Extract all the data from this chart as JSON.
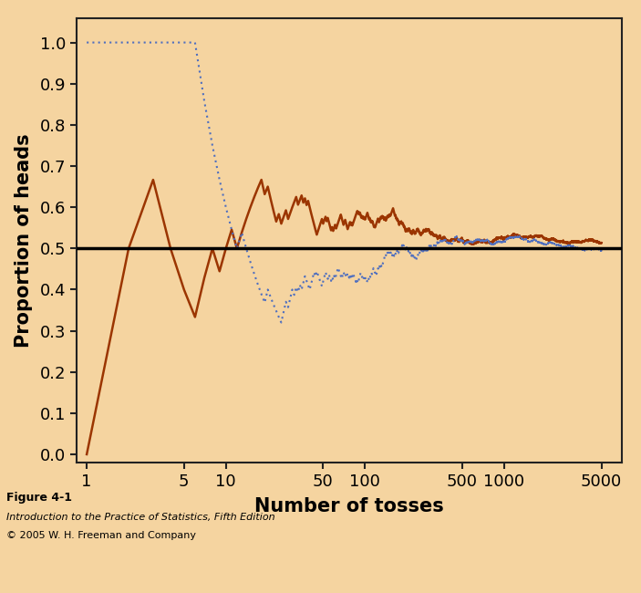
{
  "bg_color": "#F5D4A0",
  "xlabel": "Number of tosses",
  "ylabel": "Proportion of heads",
  "xlabel_fontsize": 15,
  "ylabel_fontsize": 15,
  "xlabel_fontweight": "bold",
  "ylabel_fontweight": "bold",
  "yticks": [
    0.0,
    0.1,
    0.2,
    0.3,
    0.4,
    0.5,
    0.6,
    0.7,
    0.8,
    0.9,
    1.0
  ],
  "xtick_positions": [
    1,
    5,
    10,
    50,
    100,
    500,
    1000,
    5000
  ],
  "xtick_labels": [
    "1",
    "5",
    "10",
    "50",
    "100",
    "500",
    "1000",
    "5000"
  ],
  "ylim": [
    -0.02,
    1.06
  ],
  "xlim_lo": 0.85,
  "xlim_hi": 7000,
  "hline_y": 0.5,
  "hline_color": "#000000",
  "hline_lw": 2.5,
  "line1_color": "#9B3500",
  "line2_color": "#4F6FBF",
  "line1_lw": 1.8,
  "line2_lw": 1.5,
  "caption_line1": "Figure 4-1",
  "caption_line2": "Introduction to the Practice of Statistics, Fifth Edition",
  "caption_line3": "© 2005 W. H. Freeman and Company",
  "n_tosses": 5000
}
